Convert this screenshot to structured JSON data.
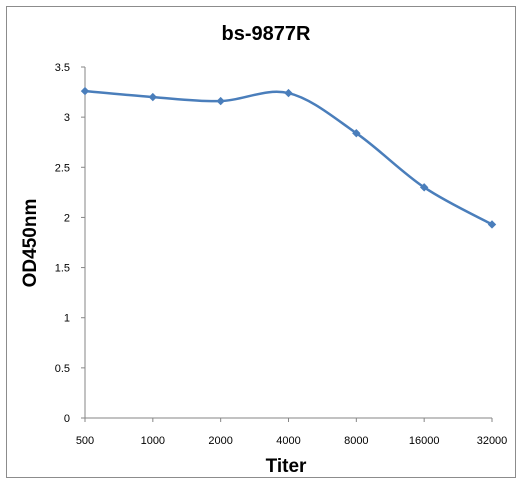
{
  "chart_data": {
    "type": "line",
    "title": "bs-9877R",
    "xlabel": "Titer",
    "ylabel": "OD450nm",
    "categories": [
      "500",
      "1000",
      "2000",
      "4000",
      "8000",
      "16000",
      "32000"
    ],
    "series": [
      {
        "values": [
          3.26,
          3.2,
          3.16,
          3.24,
          2.84,
          2.3,
          1.93
        ]
      }
    ],
    "ylim": [
      0,
      3.5
    ],
    "yticks": [
      "0",
      "0.5",
      "1",
      "1.5",
      "2",
      "2.5",
      "3",
      "3.5"
    ],
    "grid": false,
    "legend": "none",
    "colors": {
      "line": "#4a7ebb",
      "marker": "#4a7ebb",
      "axis": "#868686"
    }
  }
}
